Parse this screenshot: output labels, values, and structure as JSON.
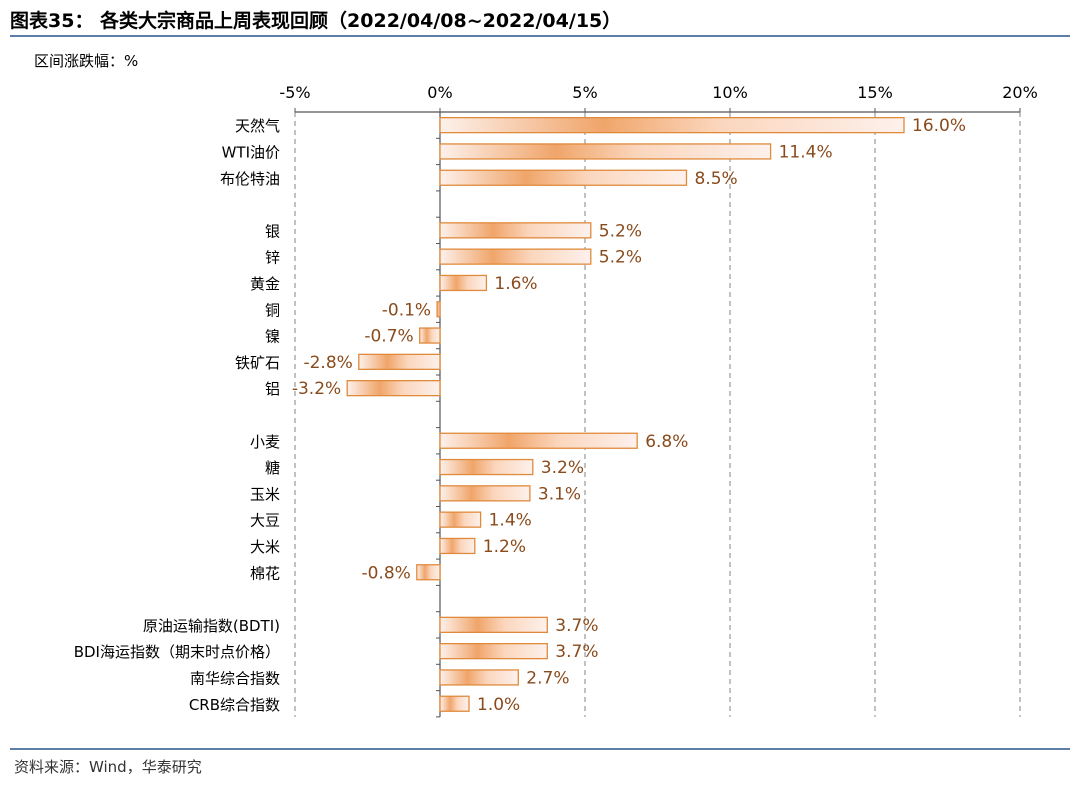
{
  "header": {
    "title": "图表35： 各类大宗商品上周表现回顾（2022/04/08~2022/04/15）",
    "unit_label": "区间涨跌幅：%"
  },
  "footer": {
    "source": "资料来源：Wind，华泰研究"
  },
  "chart_data": {
    "type": "bar",
    "orientation": "horizontal",
    "xlim": [
      -5,
      20
    ],
    "x_ticks": [
      -5,
      0,
      5,
      10,
      15,
      20
    ],
    "x_tick_labels": [
      "-5%",
      "0%",
      "5%",
      "10%",
      "15%",
      "20%"
    ],
    "x_axis_position": "top",
    "grid": "vertical dashed",
    "categories": [
      "天然气",
      "WTI油价",
      "布伦特油",
      "",
      "银",
      "锌",
      "黄金",
      "铜",
      "镍",
      "铁矿石",
      "铝",
      "",
      "小麦",
      "糖",
      "玉米",
      "大豆",
      "大米",
      "棉花",
      "",
      "原油运输指数(BDTI)",
      "BDI海运指数（期末时点价格）",
      "南华综合指数",
      "CRB综合指数"
    ],
    "values": [
      16.0,
      11.4,
      8.5,
      null,
      5.2,
      5.2,
      1.6,
      -0.1,
      -0.7,
      -2.8,
      -3.2,
      null,
      6.8,
      3.2,
      3.1,
      1.4,
      1.2,
      -0.8,
      null,
      3.7,
      3.7,
      2.7,
      1.0
    ],
    "data_labels": [
      "16.0%",
      "11.4%",
      "8.5%",
      "",
      "5.2%",
      "5.2%",
      "1.6%",
      "-0.1%",
      "-0.7%",
      "-2.8%",
      "-3.2%",
      "",
      "6.8%",
      "3.2%",
      "3.1%",
      "1.4%",
      "1.2%",
      "-0.8%",
      "",
      "3.7%",
      "3.7%",
      "2.7%",
      "1.0%"
    ],
    "colors": {
      "bar_edge": "#e08a3c",
      "bar_fill_light": "#fdf1ec",
      "bar_fill_dark": "#f0a56a",
      "label": "#8a4b1c",
      "grid": "#9a9a9a",
      "rule": "#5b7fa6"
    }
  }
}
